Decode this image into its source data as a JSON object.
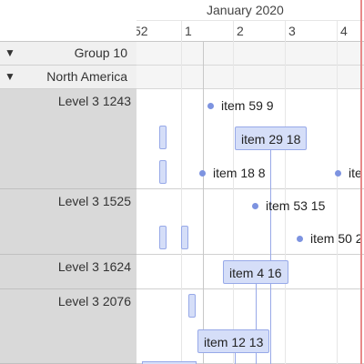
{
  "timeline": {
    "month_label": "January 2020",
    "week_labels": [
      "52",
      "1",
      "2",
      "3",
      "4"
    ]
  },
  "groups": [
    {
      "caret": "▼",
      "label": "Group 10"
    },
    {
      "caret": "▼",
      "label": "North America"
    }
  ],
  "resources": [
    {
      "label": "Level 3 1243"
    },
    {
      "label": "Level 3 1525"
    },
    {
      "label": "Level 3 1624"
    },
    {
      "label": "Level 3 2076"
    }
  ],
  "items": {
    "item_59": "item 59 9",
    "item_29": "item 29 18",
    "item_18": "item 18 8",
    "item_cut_1": "ite",
    "item_53": "item 53 15",
    "item_50": "item 50 2",
    "item_4": "item 4 16",
    "item_12": "item 12 13"
  },
  "colors": {
    "item_fill": "#d5def8",
    "item_border": "#97a9e8",
    "current_time": "#e88a8a",
    "resource_column": "#d9d9d9"
  }
}
